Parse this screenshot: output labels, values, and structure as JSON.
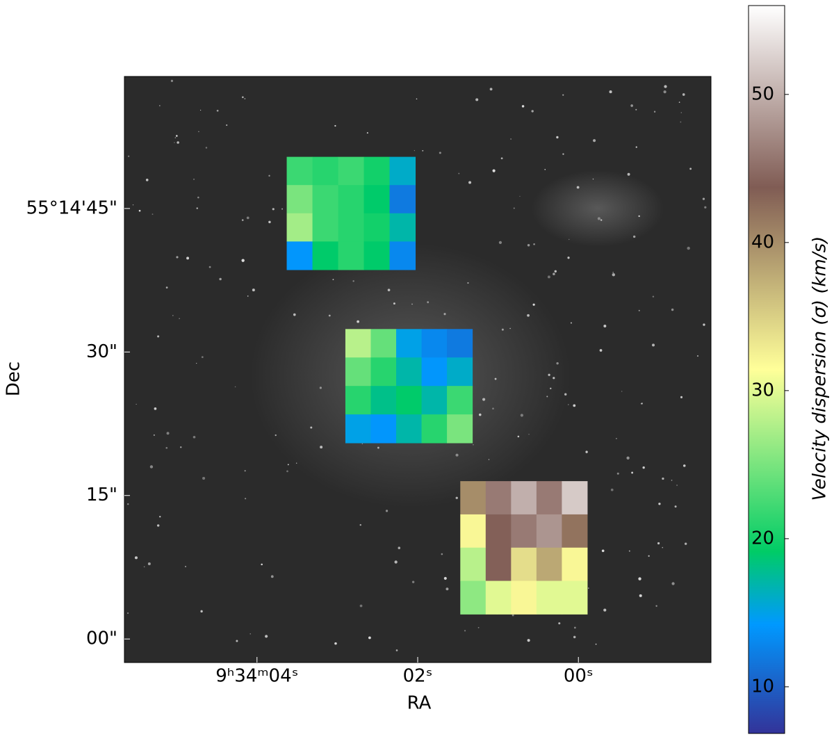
{
  "chart_data": {
    "type": "heatmap",
    "xlabel": "RA",
    "ylabel": "Dec",
    "xlim": [
      5.65,
      -1.65
    ],
    "xticks": [
      {
        "value": 4,
        "label": "9ʰ34ᵐ04ˢ"
      },
      {
        "value": 2,
        "label": "02ˢ"
      },
      {
        "value": 0,
        "label": "00ˢ"
      }
    ],
    "ylim": [
      -2.46,
      58.8
    ],
    "yticks": [
      {
        "value": 45,
        "label": "55°14'45\""
      },
      {
        "value": 30,
        "label": "30\""
      },
      {
        "value": 15,
        "label": "15\""
      },
      {
        "value": 0,
        "label": "00\""
      }
    ],
    "colorbar": {
      "label": "Velocity dispersion (σ) (km/s)",
      "lim": [
        6.85,
        56
      ],
      "ticks": [
        10,
        20,
        30,
        40,
        50
      ]
    },
    "colormap": [
      {
        "at": 0,
        "color": "#333399"
      },
      {
        "at": 0.15,
        "color": "#0099ff"
      },
      {
        "at": 0.25,
        "color": "#00cc66"
      },
      {
        "at": 0.5,
        "color": "#ffff99"
      },
      {
        "at": 0.75,
        "color": "#805c54"
      },
      {
        "at": 1,
        "color": "#ffffff"
      }
    ],
    "fields": [
      {
        "x_range": [
          3.63,
          2.03
        ],
        "y_range": [
          50.4,
          38.6
        ],
        "values": [
          [
            22,
            21,
            22,
            20,
            16
          ],
          [
            25,
            22,
            21,
            19,
            12
          ],
          [
            27,
            22,
            21,
            20,
            17
          ],
          [
            14,
            19,
            21,
            19,
            13
          ]
        ]
      },
      {
        "x_range": [
          2.9,
          1.32
        ],
        "y_range": [
          32.4,
          20.5
        ],
        "values": [
          [
            28,
            24,
            15,
            13,
            12
          ],
          [
            24,
            21,
            17,
            14,
            16
          ],
          [
            21,
            18,
            19,
            17,
            22
          ],
          [
            15,
            14,
            17,
            21,
            25
          ]
        ]
      },
      {
        "x_range": [
          1.47,
          -0.11
        ],
        "y_range": [
          16.5,
          2.6
        ],
        "values": [
          [
            40,
            46,
            50,
            46,
            52
          ],
          [
            32,
            44,
            46,
            48,
            42
          ],
          [
            28,
            44,
            34,
            38,
            32
          ],
          [
            26,
            30,
            32,
            30,
            30
          ]
        ]
      }
    ]
  }
}
